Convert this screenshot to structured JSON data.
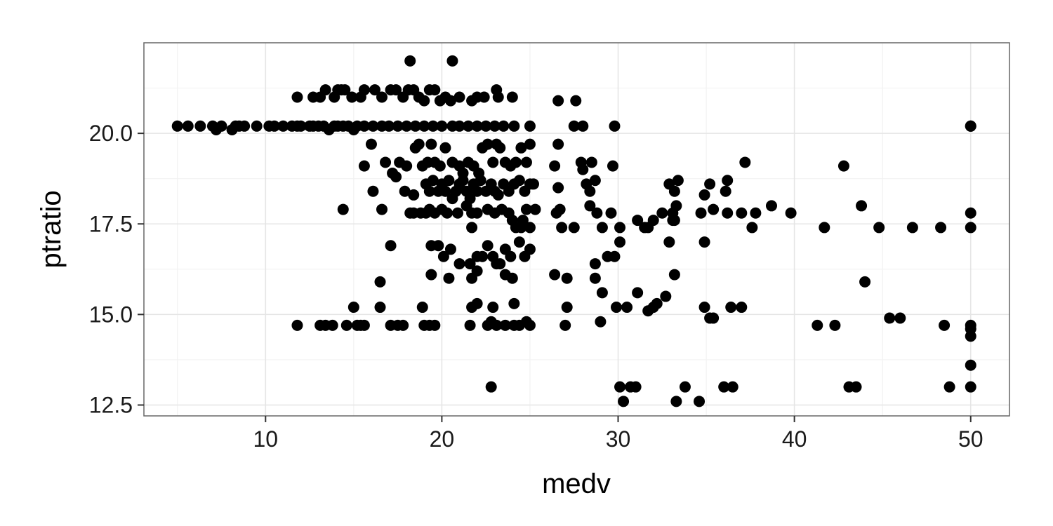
{
  "chart_data": {
    "type": "scatter",
    "title": "",
    "xlabel": "medv",
    "ylabel": "ptratio",
    "xlim": [
      3.1,
      52.2
    ],
    "ylim": [
      12.2,
      22.5
    ],
    "x_ticks": [
      10,
      20,
      30,
      40,
      50
    ],
    "x_tick_labels": [
      "10",
      "20",
      "30",
      "40",
      "50"
    ],
    "y_ticks": [
      12.5,
      15.0,
      17.5,
      20.0
    ],
    "y_tick_labels": [
      "12.5",
      "15.0",
      "17.5",
      "20.0"
    ],
    "grid": true,
    "legend": "none",
    "point_color": "#000000",
    "panel_border_color": "#666666",
    "grid_major_color": "#e5e5e5",
    "grid_minor_color": "#f2f2f2",
    "points": [
      [
        5.0,
        20.2
      ],
      [
        5.6,
        20.2
      ],
      [
        6.3,
        20.2
      ],
      [
        7.0,
        20.2
      ],
      [
        7.2,
        20.1
      ],
      [
        7.5,
        20.2
      ],
      [
        8.1,
        20.1
      ],
      [
        8.3,
        20.2
      ],
      [
        8.5,
        20.2
      ],
      [
        8.8,
        20.2
      ],
      [
        9.5,
        20.2
      ],
      [
        10.2,
        20.2
      ],
      [
        10.5,
        20.2
      ],
      [
        11.0,
        20.2
      ],
      [
        11.5,
        20.2
      ],
      [
        11.8,
        20.2
      ],
      [
        12.0,
        20.2
      ],
      [
        12.5,
        20.2
      ],
      [
        12.7,
        20.2
      ],
      [
        13.0,
        20.2
      ],
      [
        13.3,
        20.2
      ],
      [
        13.6,
        20.1
      ],
      [
        13.9,
        20.2
      ],
      [
        14.1,
        20.2
      ],
      [
        14.4,
        20.2
      ],
      [
        14.7,
        20.2
      ],
      [
        15.0,
        20.1
      ],
      [
        15.2,
        20.2
      ],
      [
        15.6,
        20.2
      ],
      [
        16.1,
        20.2
      ],
      [
        16.6,
        20.2
      ],
      [
        17.0,
        20.2
      ],
      [
        17.5,
        20.2
      ],
      [
        18.0,
        20.2
      ],
      [
        18.5,
        20.2
      ],
      [
        19.0,
        20.2
      ],
      [
        19.5,
        20.2
      ],
      [
        20.0,
        20.2
      ],
      [
        20.6,
        20.2
      ],
      [
        21.0,
        20.2
      ],
      [
        21.5,
        20.2
      ],
      [
        22.0,
        20.2
      ],
      [
        22.5,
        20.2
      ],
      [
        23.0,
        20.2
      ],
      [
        23.5,
        20.2
      ],
      [
        24.1,
        20.2
      ],
      [
        25.0,
        20.2
      ],
      [
        11.8,
        21.0
      ],
      [
        12.7,
        21.0
      ],
      [
        13.1,
        21.0
      ],
      [
        13.4,
        21.2
      ],
      [
        13.9,
        21.0
      ],
      [
        14.1,
        21.2
      ],
      [
        14.3,
        21.2
      ],
      [
        14.5,
        21.2
      ],
      [
        14.9,
        21.0
      ],
      [
        15.4,
        21.0
      ],
      [
        15.6,
        21.2
      ],
      [
        16.2,
        21.2
      ],
      [
        16.6,
        21.0
      ],
      [
        17.1,
        21.2
      ],
      [
        17.4,
        21.2
      ],
      [
        17.8,
        21.0
      ],
      [
        18.1,
        21.2
      ],
      [
        18.4,
        21.2
      ],
      [
        18.7,
        21.0
      ],
      [
        19.0,
        20.9
      ],
      [
        19.3,
        21.2
      ],
      [
        19.6,
        21.2
      ],
      [
        19.9,
        20.9
      ],
      [
        20.2,
        21.0
      ],
      [
        20.5,
        20.9
      ],
      [
        21.0,
        21.0
      ],
      [
        21.7,
        20.9
      ],
      [
        22.0,
        21.0
      ],
      [
        22.4,
        21.0
      ],
      [
        23.1,
        21.2
      ],
      [
        23.2,
        21.0
      ],
      [
        24.0,
        21.0
      ],
      [
        18.2,
        22.0
      ],
      [
        20.6,
        22.0
      ],
      [
        26.6,
        20.9
      ],
      [
        27.6,
        20.9
      ],
      [
        27.5,
        20.2
      ],
      [
        28.0,
        20.2
      ],
      [
        29.8,
        20.2
      ],
      [
        50.0,
        20.2
      ],
      [
        50.0,
        20.2
      ],
      [
        15.6,
        19.1
      ],
      [
        16.0,
        19.7
      ],
      [
        16.8,
        19.2
      ],
      [
        17.2,
        18.9
      ],
      [
        17.4,
        18.8
      ],
      [
        17.6,
        19.2
      ],
      [
        18.0,
        19.1
      ],
      [
        18.5,
        19.6
      ],
      [
        18.7,
        19.7
      ],
      [
        18.9,
        19.1
      ],
      [
        19.2,
        19.2
      ],
      [
        19.4,
        19.7
      ],
      [
        19.6,
        19.2
      ],
      [
        19.9,
        19.1
      ],
      [
        20.2,
        19.6
      ],
      [
        20.6,
        19.2
      ],
      [
        21.0,
        19.1
      ],
      [
        21.2,
        18.9
      ],
      [
        21.5,
        19.2
      ],
      [
        21.8,
        19.1
      ],
      [
        22.1,
        18.9
      ],
      [
        22.3,
        19.6
      ],
      [
        22.6,
        19.7
      ],
      [
        22.9,
        19.2
      ],
      [
        23.1,
        19.7
      ],
      [
        23.3,
        19.6
      ],
      [
        23.6,
        19.2
      ],
      [
        23.9,
        19.1
      ],
      [
        24.2,
        19.2
      ],
      [
        24.5,
        19.6
      ],
      [
        24.8,
        19.2
      ],
      [
        25.0,
        19.7
      ],
      [
        26.4,
        19.1
      ],
      [
        26.6,
        19.7
      ],
      [
        27.9,
        19.2
      ],
      [
        28.0,
        19.0
      ],
      [
        28.5,
        19.2
      ],
      [
        29.7,
        19.1
      ],
      [
        37.2,
        19.2
      ],
      [
        42.8,
        19.1
      ],
      [
        16.1,
        18.4
      ],
      [
        17.9,
        18.4
      ],
      [
        18.4,
        18.3
      ],
      [
        19.1,
        18.6
      ],
      [
        19.3,
        18.4
      ],
      [
        19.5,
        18.7
      ],
      [
        19.8,
        18.4
      ],
      [
        20.0,
        18.6
      ],
      [
        20.2,
        18.4
      ],
      [
        20.4,
        18.7
      ],
      [
        20.6,
        18.2
      ],
      [
        20.8,
        18.4
      ],
      [
        21.0,
        18.6
      ],
      [
        21.2,
        18.7
      ],
      [
        21.4,
        18.4
      ],
      [
        21.6,
        18.2
      ],
      [
        21.8,
        18.6
      ],
      [
        22.0,
        18.4
      ],
      [
        22.2,
        18.7
      ],
      [
        22.5,
        18.4
      ],
      [
        22.8,
        18.6
      ],
      [
        23.0,
        18.4
      ],
      [
        23.2,
        18.3
      ],
      [
        23.5,
        18.6
      ],
      [
        23.8,
        18.4
      ],
      [
        24.1,
        18.6
      ],
      [
        24.4,
        18.7
      ],
      [
        24.7,
        18.4
      ],
      [
        25.0,
        18.6
      ],
      [
        25.2,
        18.6
      ],
      [
        26.6,
        18.5
      ],
      [
        28.2,
        18.6
      ],
      [
        28.4,
        18.4
      ],
      [
        28.7,
        18.7
      ],
      [
        32.9,
        18.6
      ],
      [
        33.2,
        18.4
      ],
      [
        33.4,
        18.7
      ],
      [
        34.9,
        18.3
      ],
      [
        35.2,
        18.6
      ],
      [
        36.1,
        18.4
      ],
      [
        36.2,
        18.7
      ],
      [
        14.4,
        17.9
      ],
      [
        16.6,
        17.9
      ],
      [
        18.2,
        17.8
      ],
      [
        18.4,
        17.8
      ],
      [
        18.8,
        17.8
      ],
      [
        19.1,
        17.8
      ],
      [
        19.3,
        17.9
      ],
      [
        19.6,
        17.8
      ],
      [
        20.0,
        17.9
      ],
      [
        20.3,
        17.8
      ],
      [
        20.9,
        17.8
      ],
      [
        21.4,
        18.0
      ],
      [
        21.7,
        17.8
      ],
      [
        22.0,
        17.8
      ],
      [
        22.6,
        17.9
      ],
      [
        23.0,
        17.8
      ],
      [
        23.4,
        17.9
      ],
      [
        23.8,
        17.8
      ],
      [
        24.0,
        17.6
      ],
      [
        24.6,
        17.6
      ],
      [
        24.8,
        17.9
      ],
      [
        25.3,
        17.9
      ],
      [
        26.5,
        17.8
      ],
      [
        26.7,
        17.9
      ],
      [
        28.4,
        18.0
      ],
      [
        28.8,
        17.8
      ],
      [
        29.6,
        17.8
      ],
      [
        33.1,
        17.8
      ],
      [
        33.3,
        18.0
      ],
      [
        34.7,
        17.8
      ],
      [
        35.4,
        17.9
      ],
      [
        36.2,
        17.8
      ],
      [
        37.0,
        17.8
      ],
      [
        37.8,
        17.8
      ],
      [
        38.7,
        18.0
      ],
      [
        39.8,
        17.8
      ],
      [
        43.8,
        18.0
      ],
      [
        50.0,
        17.8
      ],
      [
        21.7,
        17.4
      ],
      [
        24.2,
        17.4
      ],
      [
        24.5,
        17.4
      ],
      [
        25.0,
        17.4
      ],
      [
        26.8,
        17.4
      ],
      [
        27.5,
        17.4
      ],
      [
        29.1,
        17.4
      ],
      [
        30.1,
        17.4
      ],
      [
        31.1,
        17.6
      ],
      [
        31.5,
        17.4
      ],
      [
        31.7,
        17.4
      ],
      [
        32.0,
        17.6
      ],
      [
        32.5,
        17.8
      ],
      [
        33.1,
        17.6
      ],
      [
        33.2,
        17.6
      ],
      [
        37.6,
        17.4
      ],
      [
        41.7,
        17.4
      ],
      [
        44.8,
        17.4
      ],
      [
        46.7,
        17.4
      ],
      [
        48.3,
        17.4
      ],
      [
        50.0,
        17.4
      ],
      [
        17.1,
        16.9
      ],
      [
        19.4,
        16.9
      ],
      [
        19.8,
        16.9
      ],
      [
        20.5,
        16.8
      ],
      [
        24.4,
        17.0
      ],
      [
        24.7,
        16.6
      ],
      [
        25.0,
        16.8
      ],
      [
        30.1,
        17.0
      ],
      [
        32.9,
        17.0
      ],
      [
        34.9,
        17.0
      ],
      [
        20.1,
        16.6
      ],
      [
        21.0,
        16.4
      ],
      [
        21.6,
        16.4
      ],
      [
        22.0,
        16.6
      ],
      [
        22.3,
        16.6
      ],
      [
        22.6,
        16.9
      ],
      [
        22.9,
        16.6
      ],
      [
        23.1,
        16.4
      ],
      [
        23.3,
        16.4
      ],
      [
        23.6,
        16.8
      ],
      [
        23.9,
        16.6
      ],
      [
        28.7,
        16.4
      ],
      [
        29.4,
        16.6
      ],
      [
        29.8,
        16.6
      ],
      [
        16.5,
        15.9
      ],
      [
        19.4,
        16.1
      ],
      [
        20.4,
        16.0
      ],
      [
        21.7,
        16.0
      ],
      [
        22.0,
        16.2
      ],
      [
        23.6,
        16.1
      ],
      [
        24.0,
        16.0
      ],
      [
        26.4,
        16.1
      ],
      [
        27.1,
        16.0
      ],
      [
        28.7,
        16.0
      ],
      [
        33.2,
        16.1
      ],
      [
        44.0,
        15.9
      ],
      [
        29.1,
        15.6
      ],
      [
        31.1,
        15.6
      ],
      [
        31.7,
        15.1
      ],
      [
        32.0,
        15.2
      ],
      [
        32.2,
        15.3
      ],
      [
        32.7,
        15.5
      ],
      [
        15.0,
        15.2
      ],
      [
        16.5,
        15.2
      ],
      [
        18.9,
        15.2
      ],
      [
        21.7,
        15.2
      ],
      [
        22.0,
        15.3
      ],
      [
        22.9,
        15.2
      ],
      [
        24.1,
        15.3
      ],
      [
        27.1,
        15.2
      ],
      [
        29.9,
        15.2
      ],
      [
        30.5,
        15.2
      ],
      [
        34.9,
        15.2
      ],
      [
        35.2,
        14.9
      ],
      [
        35.4,
        14.9
      ],
      [
        36.4,
        15.2
      ],
      [
        37.0,
        15.2
      ],
      [
        45.4,
        14.9
      ],
      [
        46.0,
        14.9
      ],
      [
        11.8,
        14.7
      ],
      [
        13.1,
        14.7
      ],
      [
        13.4,
        14.7
      ],
      [
        13.8,
        14.7
      ],
      [
        14.6,
        14.7
      ],
      [
        15.2,
        14.7
      ],
      [
        15.4,
        14.7
      ],
      [
        15.6,
        14.7
      ],
      [
        17.1,
        14.7
      ],
      [
        17.5,
        14.7
      ],
      [
        17.8,
        14.7
      ],
      [
        19.0,
        14.7
      ],
      [
        19.3,
        14.7
      ],
      [
        19.6,
        14.7
      ],
      [
        21.6,
        14.7
      ],
      [
        22.6,
        14.7
      ],
      [
        22.8,
        14.8
      ],
      [
        23.1,
        14.7
      ],
      [
        23.6,
        14.7
      ],
      [
        24.1,
        14.7
      ],
      [
        24.4,
        14.7
      ],
      [
        24.8,
        14.8
      ],
      [
        25.0,
        14.7
      ],
      [
        27.0,
        14.7
      ],
      [
        29.0,
        14.8
      ],
      [
        41.3,
        14.7
      ],
      [
        42.3,
        14.7
      ],
      [
        48.5,
        14.7
      ],
      [
        50.0,
        14.7
      ],
      [
        50.0,
        14.6
      ],
      [
        50.0,
        14.4
      ],
      [
        50.0,
        13.6
      ],
      [
        22.8,
        13.0
      ],
      [
        30.1,
        13.0
      ],
      [
        30.7,
        13.0
      ],
      [
        31.0,
        13.0
      ],
      [
        33.8,
        13.0
      ],
      [
        36.0,
        13.0
      ],
      [
        36.5,
        13.0
      ],
      [
        43.1,
        13.0
      ],
      [
        43.5,
        13.0
      ],
      [
        48.8,
        13.0
      ],
      [
        50.0,
        13.0
      ],
      [
        30.3,
        12.6
      ],
      [
        33.3,
        12.6
      ],
      [
        34.6,
        12.6
      ]
    ]
  }
}
